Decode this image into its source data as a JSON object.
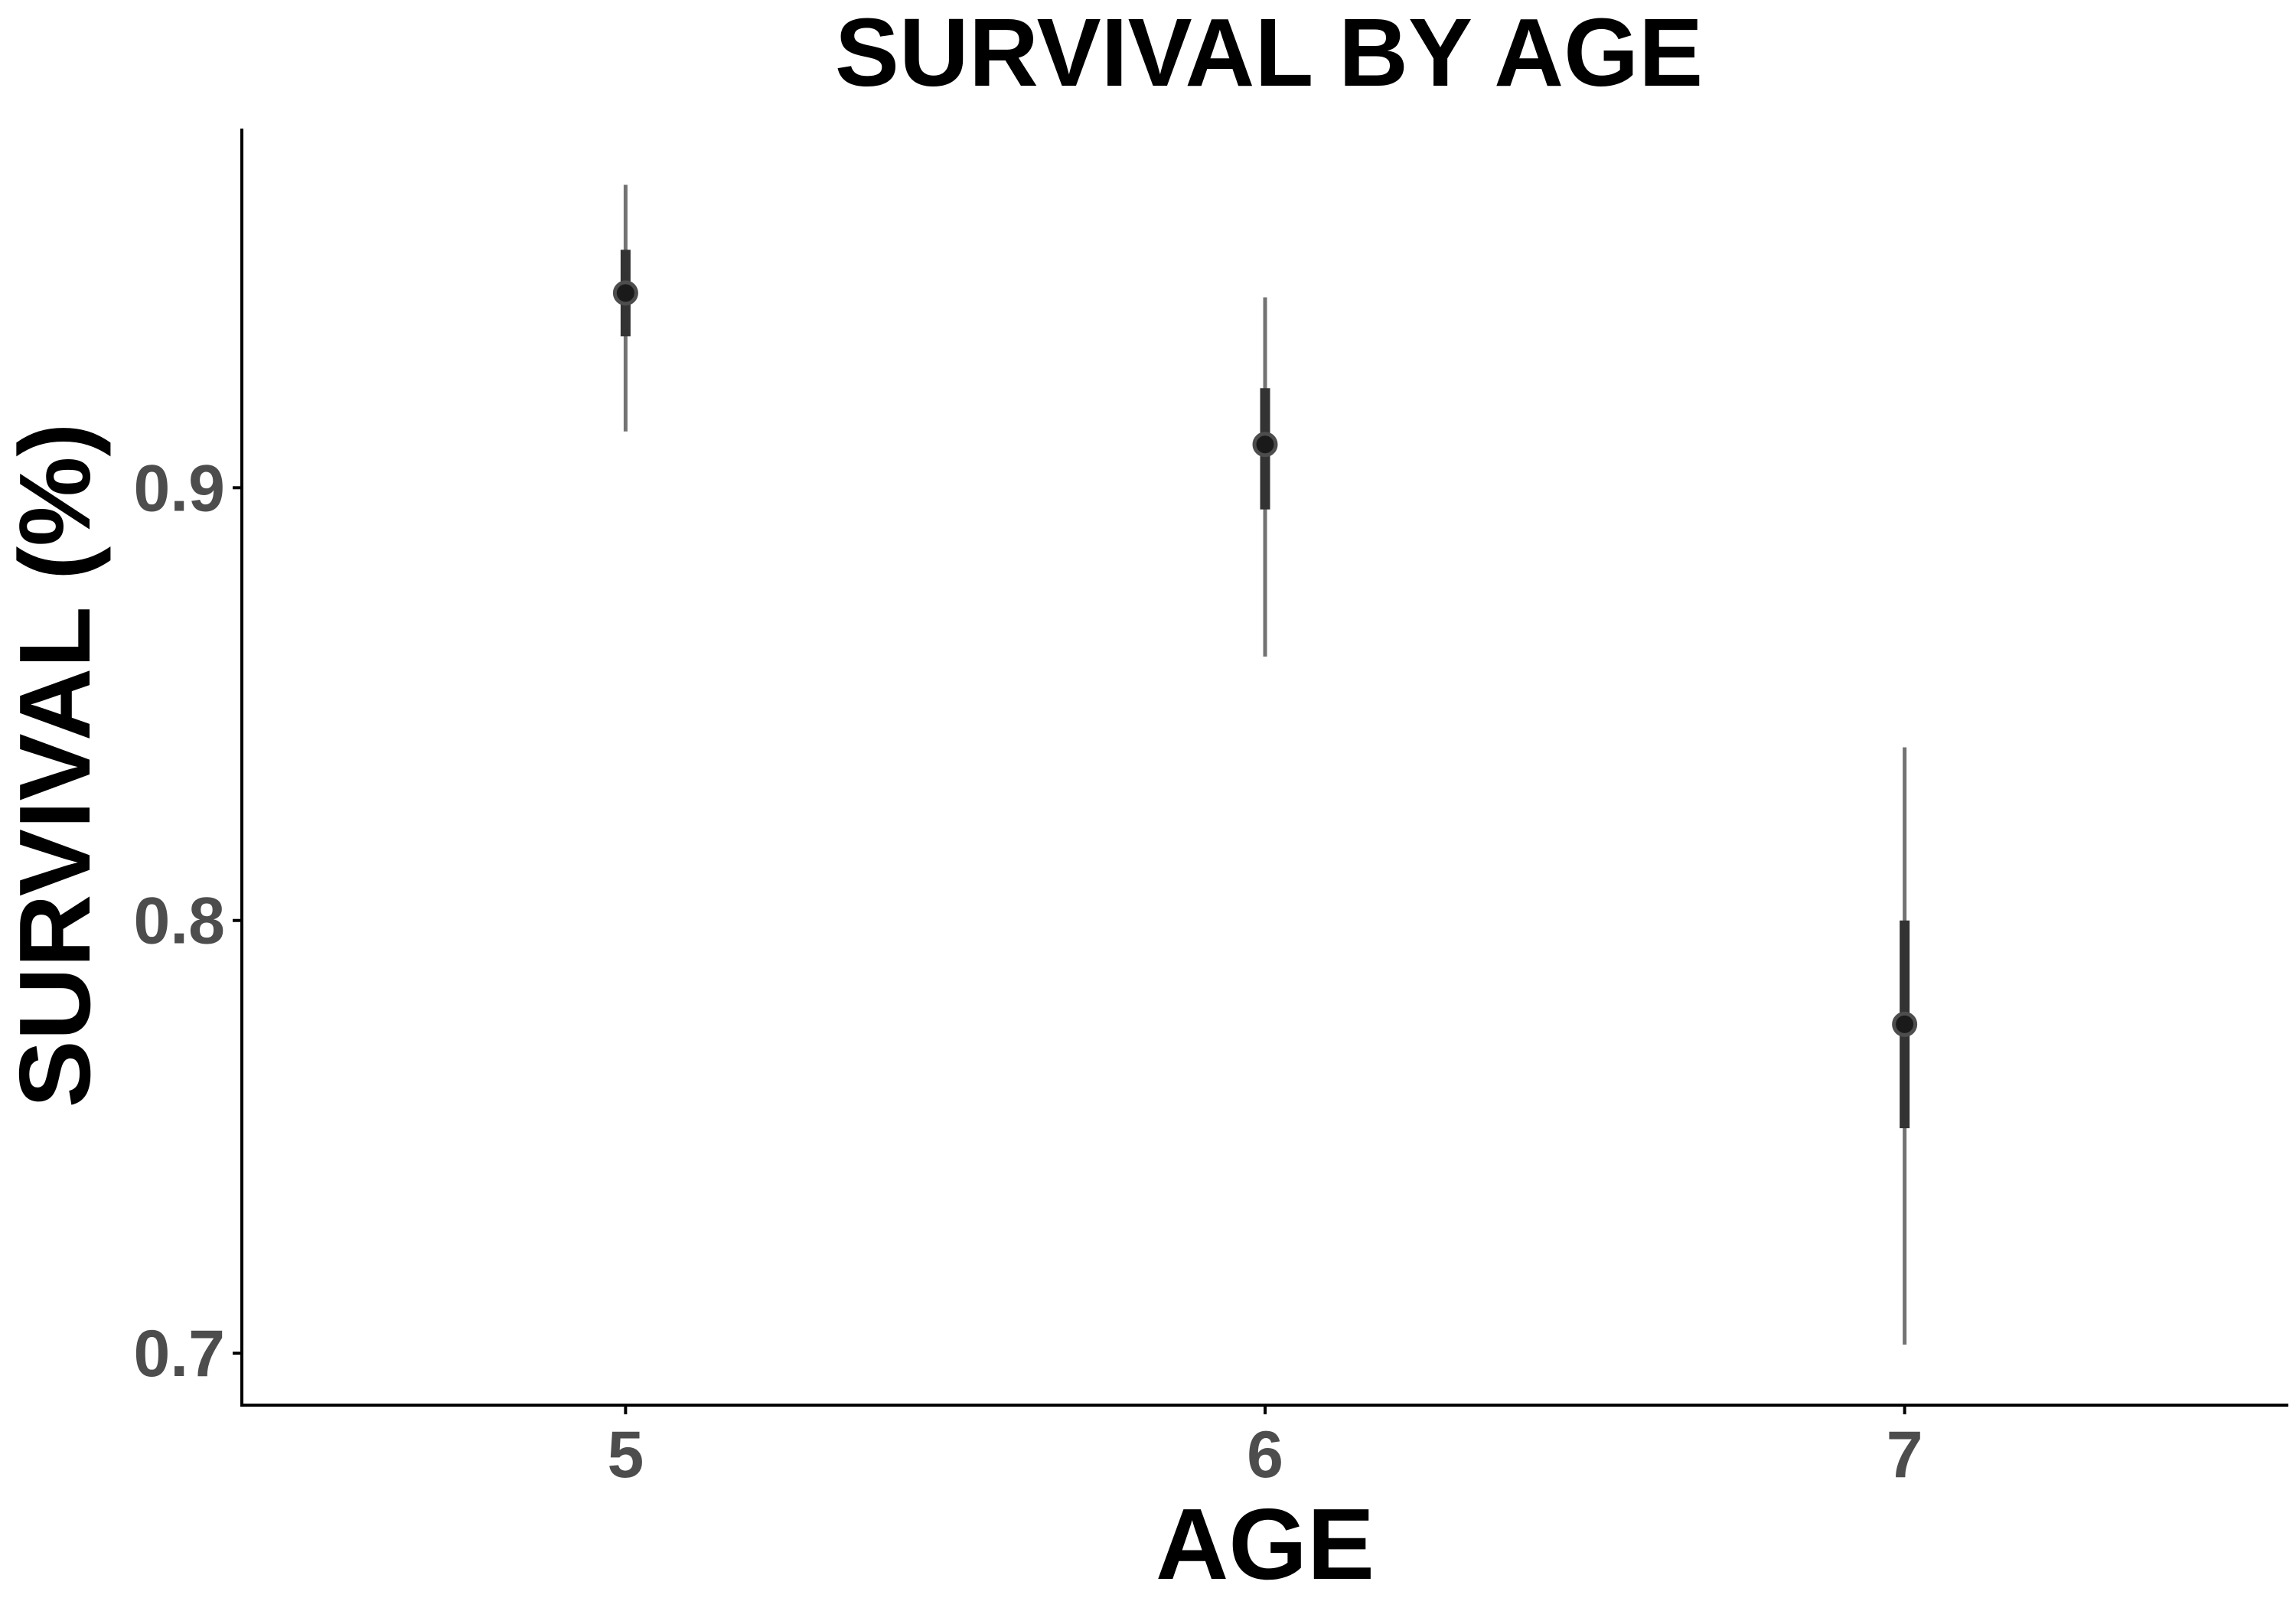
{
  "chart_data": {
    "type": "scatter",
    "title": "SURVIVAL BY AGE",
    "xlabel": "AGE",
    "ylabel": "SURVIVAL (%)",
    "x_ticks": [
      "5",
      "6",
      "7"
    ],
    "y_ticks": [
      "0.7",
      "0.8",
      "0.9"
    ],
    "xlim": [
      4.4,
      7.6
    ],
    "ylim": [
      0.688,
      0.983
    ],
    "grid": false,
    "legend": "none",
    "points": [
      {
        "x": 5,
        "y": 0.945,
        "inner": [
          0.935,
          0.955
        ],
        "outer": [
          0.913,
          0.97
        ]
      },
      {
        "x": 6,
        "y": 0.91,
        "inner": [
          0.895,
          0.923
        ],
        "outer": [
          0.861,
          0.944
        ]
      },
      {
        "x": 7,
        "y": 0.776,
        "inner": [
          0.752,
          0.8
        ],
        "outer": [
          0.702,
          0.84
        ]
      }
    ],
    "colors": {
      "point": "#1a1a1a",
      "inner_interval": "#333333",
      "outer_interval": "#737373",
      "axis": "#000000",
      "tick_label": "#4d4d4d"
    }
  }
}
